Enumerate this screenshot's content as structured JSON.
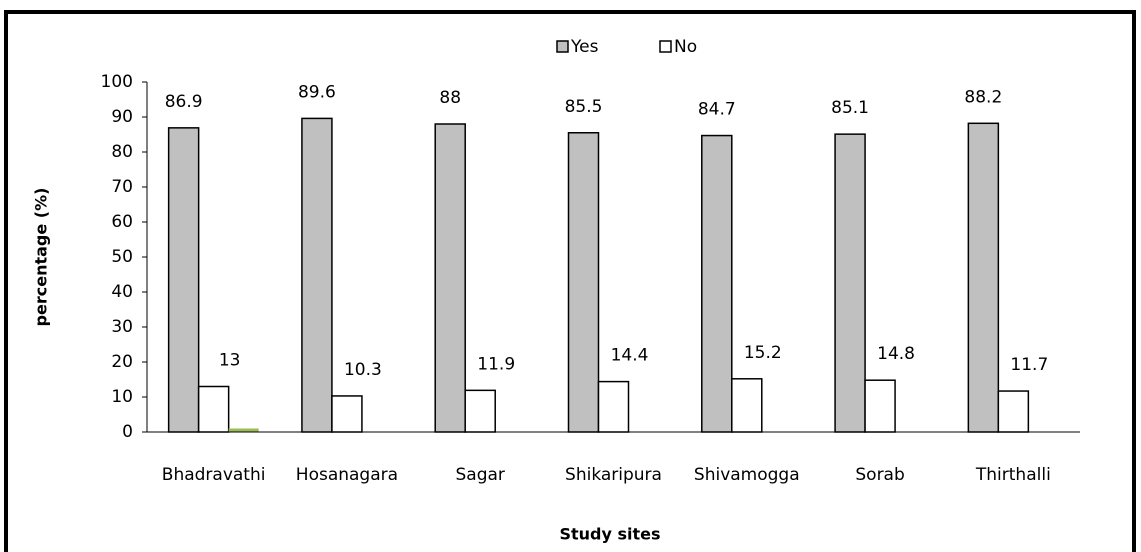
{
  "chart_data": {
    "type": "bar",
    "x_label": "Study sites",
    "y_label": "percentage (%)",
    "categories": [
      "Bhadravathi",
      "Hosanagara",
      "Sagar",
      "Shikaripura",
      "Shivamogga",
      "Sorab",
      "Thirthalli"
    ],
    "series": [
      {
        "name": "Yes",
        "color": "#c0c0c0",
        "values": [
          86.9,
          89.6,
          88,
          85.5,
          84.7,
          85.1,
          88.2
        ]
      },
      {
        "name": "No",
        "color": "#ffffff",
        "values": [
          13,
          10.3,
          11.9,
          14.4,
          15.2,
          14.8,
          11.7
        ]
      },
      {
        "color": "#9bbb59",
        "values": [
          1,
          null,
          null,
          null,
          null,
          null,
          null
        ]
      }
    ],
    "ylim": [
      0,
      100
    ],
    "yticks": [
      0,
      10,
      20,
      30,
      40,
      50,
      60,
      70,
      80,
      90,
      100
    ],
    "grid": false,
    "legend": "top"
  }
}
